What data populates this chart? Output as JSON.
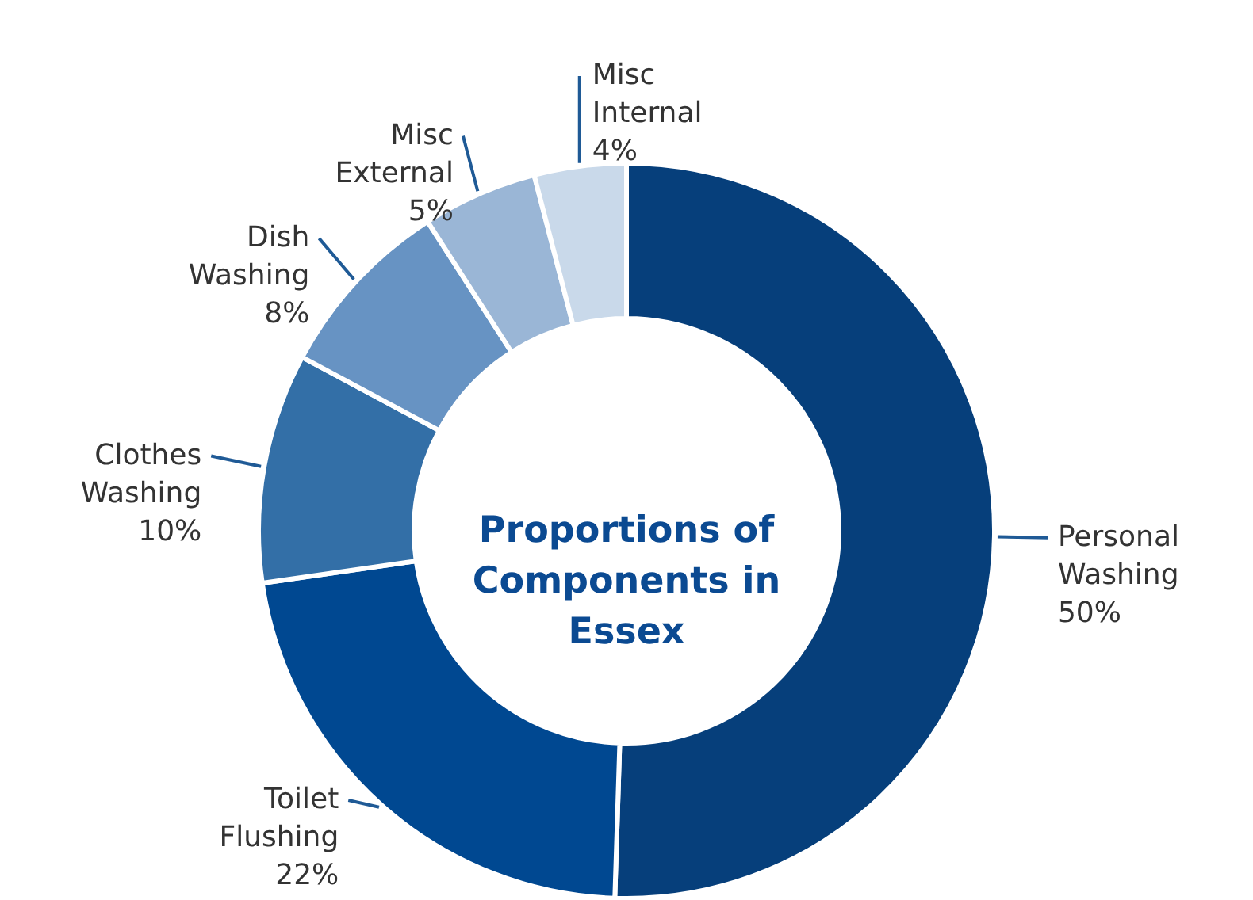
{
  "chart_data": {
    "type": "donut",
    "title": "Proportions of Components in Essex",
    "categories": [
      "Personal Washing",
      "Toilet Flushing",
      "Clothes Washing",
      "Dish Washing",
      "Misc External",
      "Misc Internal"
    ],
    "values": [
      50,
      22,
      10,
      8,
      5,
      4
    ],
    "colors": [
      "#063f7b",
      "#004891",
      "#336fa7",
      "#6793c3",
      "#9ab6d6",
      "#c9d9ea"
    ],
    "value_labels": [
      "50%",
      "22%",
      "10%",
      "8%",
      "5%",
      "4%"
    ]
  }
}
